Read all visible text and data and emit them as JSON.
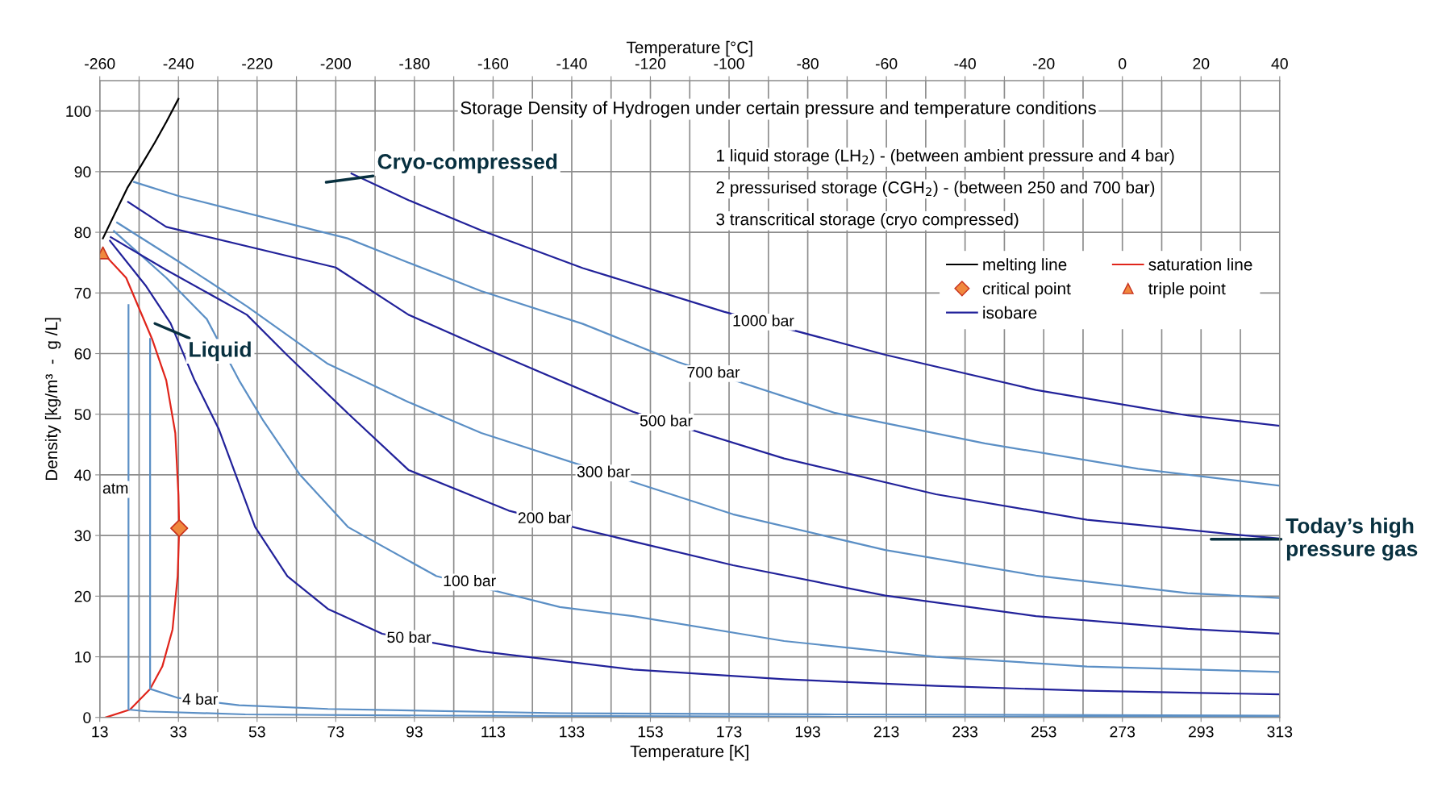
{
  "chart_data": {
    "type": "line",
    "title": "Storage Density of Hydrogen under certain pressure and temperature conditions",
    "xlabel": "Temperature [K]",
    "ylabel": "Density [kg/m³  -  g /L]",
    "x2label": "Temperature [°C]",
    "xlim": [
      13,
      313
    ],
    "ylim": [
      0,
      105
    ],
    "x2lim": [
      -260,
      40
    ],
    "xticks": [
      13,
      {
        "value": 23,
        "label": null
      },
      33,
      {
        "value": 43,
        "label": null
      },
      53,
      {
        "value": 63,
        "label": null
      },
      73,
      {
        "value": 83,
        "label": null
      },
      93,
      {
        "value": 103,
        "label": null
      },
      113,
      {
        "value": 123,
        "label": null
      },
      133,
      {
        "value": 143,
        "label": null
      },
      153,
      {
        "value": 163,
        "label": null
      },
      173,
      {
        "value": 183,
        "label": null
      },
      193,
      {
        "value": 203,
        "label": null
      },
      213,
      {
        "value": 223,
        "label": null
      },
      233,
      {
        "value": 243,
        "label": null
      },
      253,
      {
        "value": 263,
        "label": null
      },
      273,
      {
        "value": 283,
        "label": null
      },
      293,
      {
        "value": 303,
        "label": null
      },
      313
    ],
    "yticks": [
      0,
      10,
      20,
      30,
      40,
      50,
      60,
      70,
      80,
      90,
      100
    ],
    "x2ticks": [
      -260,
      {
        "value": -250,
        "label": null
      },
      -240,
      {
        "value": -230,
        "label": null
      },
      -220,
      {
        "value": -210,
        "label": null
      },
      -200,
      {
        "value": -190,
        "label": null
      },
      -180,
      {
        "value": -170,
        "label": null
      },
      -160,
      {
        "value": -150,
        "label": null
      },
      -140,
      {
        "value": -130,
        "label": null
      },
      -120,
      {
        "value": -110,
        "label": null
      },
      -100,
      {
        "value": -90,
        "label": null
      },
      -80,
      {
        "value": -70,
        "label": null
      },
      -60,
      {
        "value": -50,
        "label": null
      },
      -40,
      {
        "value": -30,
        "label": null
      },
      -20,
      {
        "value": -10,
        "label": null
      },
      0,
      {
        "value": 10,
        "label": null
      },
      20,
      {
        "value": 30,
        "label": null
      },
      40
    ],
    "grid": true,
    "legend": "top right",
    "series": [
      {
        "name": "melting line",
        "color": "#000000",
        "x": [
          13.8,
          17,
          20,
          23.5,
          27,
          30,
          33
        ],
        "values": [
          79,
          83.3,
          87.3,
          91,
          94.8,
          98.3,
          102
        ]
      },
      {
        "name": "saturation line",
        "color": "#e0251b",
        "x": [
          13.8,
          19.7,
          26.3,
          29.9,
          32.2,
          33,
          33.2,
          32.8,
          31.5,
          28.9,
          25.8,
          20.7,
          14.5
        ],
        "values": [
          76.6,
          72.5,
          62.4,
          55.6,
          46.9,
          36.7,
          31.2,
          23.3,
          14.5,
          8.4,
          4.7,
          1.3,
          0
        ]
      },
      {
        "name": "critical point",
        "type": "scatter",
        "marker": "diamond",
        "color": "#f0883e",
        "x": [
          33.2
        ],
        "values": [
          31.2
        ]
      },
      {
        "name": "triple point",
        "type": "scatter",
        "marker": "triangle",
        "color": "#f0883e",
        "x": [
          13.8
        ],
        "values": [
          76.6
        ]
      },
      {
        "color": "#5b8fc5",
        "x": [
          20.3,
          20.3,
          25,
          30,
          50,
          100,
          200,
          313
        ],
        "values": [
          68,
          1.3,
          1.0,
          0.9,
          0.5,
          0.3,
          0.1,
          0.1
        ]
      },
      {
        "color": "#5b8fc5",
        "x": [
          25.8,
          25.8,
          33,
          48.4,
          71,
          130,
          200,
          313
        ],
        "values": [
          62.4,
          4.7,
          3.2,
          2.0,
          1.4,
          0.7,
          0.5,
          0.3
        ]
      },
      {
        "color": "#22229a",
        "x": [
          15.6,
          24.8,
          31,
          37.1,
          43.3,
          52.5,
          60.7,
          71,
          84.8,
          110,
          148.6,
          187,
          225.6,
          264,
          313
        ],
        "values": [
          78.6,
          71.1,
          65,
          55.6,
          47.5,
          31.4,
          23.3,
          17.9,
          13.8,
          10.9,
          7.9,
          6.3,
          5.2,
          4.4,
          3.8
        ]
      },
      {
        "color": "#5b8fc5",
        "x": [
          16.6,
          29.9,
          40.2,
          48.4,
          54.6,
          63.8,
          76.1,
          98.6,
          130,
          148.6,
          187,
          225.6,
          264,
          313
        ],
        "values": [
          80.2,
          72.5,
          65.7,
          55.6,
          48.9,
          40.1,
          31.4,
          23.3,
          18.2,
          16.7,
          12.6,
          10,
          8.4,
          7.5
        ]
      },
      {
        "color": "#22229a",
        "x": [
          15.8,
          29.9,
          50.4,
          60.7,
          76,
          91.5,
          117,
          135.8,
          174,
          212.7,
          251,
          289.6,
          313
        ],
        "values": [
          79.2,
          73.8,
          66.4,
          59.7,
          50.2,
          40.8,
          34.1,
          31,
          25.1,
          20.1,
          16.7,
          14.6,
          13.8
        ]
      },
      {
        "color": "#5b8fc5",
        "x": [
          17.4,
          33,
          50.4,
          71,
          91.5,
          110,
          174,
          212.7,
          251,
          289.6,
          313
        ],
        "values": [
          81.6,
          75.2,
          67.8,
          58.3,
          52,
          46.9,
          33.5,
          27.6,
          23.4,
          20.5,
          19.7
        ]
      },
      {
        "color": "#22229a",
        "x": [
          20.2,
          29.9,
          73,
          91.5,
          110,
          148.6,
          187,
          225.6,
          264,
          302.6,
          313
        ],
        "values": [
          85,
          80.9,
          74.2,
          66.4,
          61.1,
          50.4,
          42.7,
          36.8,
          32.6,
          30.1,
          29.5
        ]
      },
      {
        "color": "#5b8fc5",
        "x": [
          21.7,
          33,
          76,
          91.5,
          110,
          135.8,
          160,
          200,
          238,
          277,
          313
        ],
        "values": [
          88.3,
          86,
          79,
          75,
          70.3,
          64.9,
          58.6,
          50.2,
          45.2,
          41,
          38.2
        ]
      },
      {
        "name": "isobare",
        "color": "#22229a",
        "x": [
          77,
          91.5,
          110,
          135.8,
          171.7,
          212.7,
          251,
          289.6,
          313
        ],
        "values": [
          89.7,
          85.3,
          80.3,
          74.1,
          66.9,
          59.8,
          54,
          49.8,
          48.1
        ]
      }
    ],
    "annotations": [
      "1 liquid storage (LH$_{2}$) - (between ambient pressure and 4 bar)",
      "2 pressurised storage (CGH$_{2}$) - (between 250 and 700 bar)",
      "3 transcritical storage (cryo compressed)",
      {
        "text": "atm",
        "x": 17,
        "y": 37.6
      },
      {
        "text": "4 bar",
        "x": 38.5,
        "y": 2.8
      },
      {
        "text": "50 bar",
        "x": 91.6,
        "y": 13.0
      },
      {
        "text": "100 bar",
        "x": 107,
        "y": 22.3
      },
      {
        "text": "200 bar",
        "x": 126,
        "y": 32.7
      },
      {
        "text": "300 bar",
        "x": 141,
        "y": 40.3
      },
      {
        "text": "500 bar",
        "x": 157,
        "y": 48.7
      },
      {
        "text": "700 bar",
        "x": 169,
        "y": 56.7
      },
      {
        "text": "1000 bar",
        "x": 181.7,
        "y": 65.2
      },
      "Cryo-compressed",
      "Liquid",
      "Today’s high\npressure gas"
    ]
  }
}
